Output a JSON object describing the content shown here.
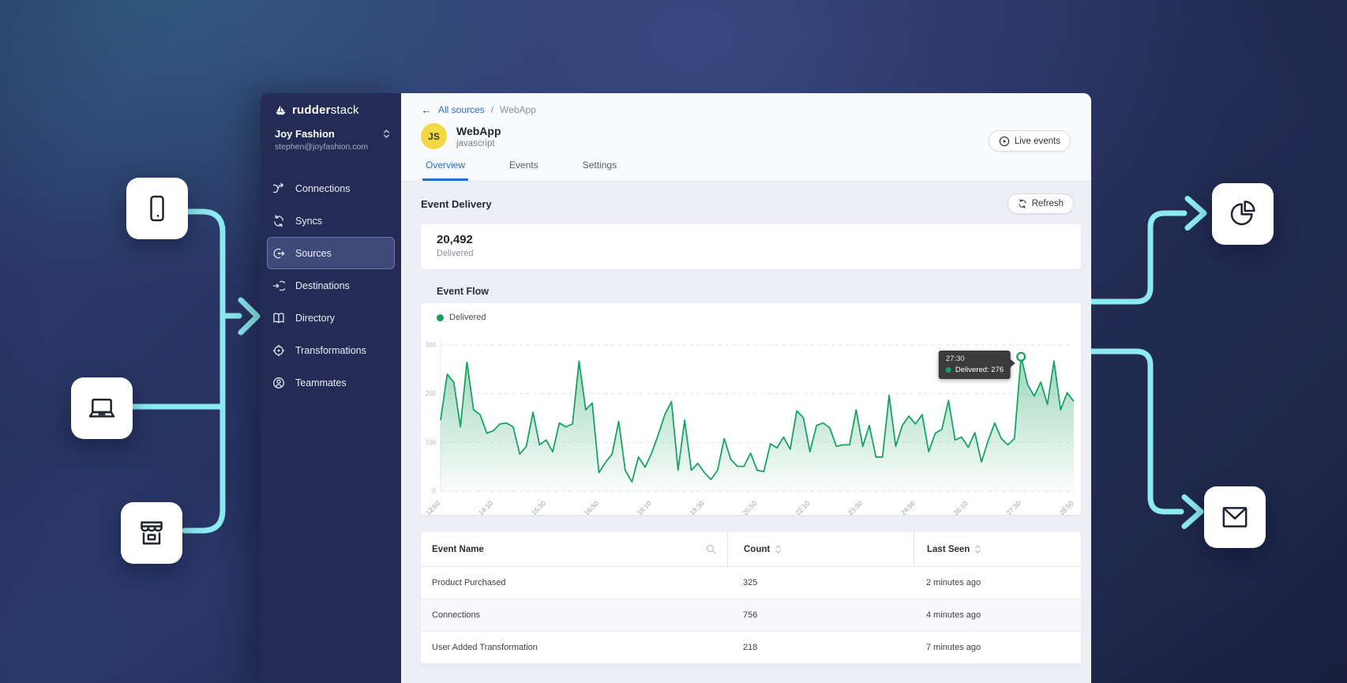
{
  "colors": {
    "accent_blue": "#2f6bd8",
    "green": "#17a05e",
    "cyan": "#8ceaf2",
    "sidebar_bg": "#242c55",
    "avatar_yellow": "#f2d844",
    "tooltip_bg": "#3b3b3b"
  },
  "brand": {
    "name_bold": "rudder",
    "name_light": "stack"
  },
  "workspace": {
    "name": "Joy Fashion",
    "email": "stephen@joyfashion.com"
  },
  "sidebar": {
    "items": [
      {
        "label": "Connections",
        "icon": "connections-icon",
        "active": false
      },
      {
        "label": "Syncs",
        "icon": "syncs-icon",
        "active": false
      },
      {
        "label": "Sources",
        "icon": "sources-icon",
        "active": true
      },
      {
        "label": "Destinations",
        "icon": "destinations-icon",
        "active": false
      },
      {
        "label": "Directory",
        "icon": "directory-icon",
        "active": false
      },
      {
        "label": "Transformations",
        "icon": "transformations-icon",
        "active": false
      },
      {
        "label": "Teammates",
        "icon": "teammates-icon",
        "active": false
      }
    ]
  },
  "breadcrumb": {
    "back_icon": "←",
    "link": "All sources",
    "separator": "/",
    "current": "WebApp"
  },
  "source_header": {
    "avatar_initials": "JS",
    "name": "WebApp",
    "type": "javascript",
    "live_events_label": "Live events"
  },
  "tabs": [
    {
      "label": "Overview",
      "active": true
    },
    {
      "label": "Events",
      "active": false
    },
    {
      "label": "Settings",
      "active": false
    }
  ],
  "event_delivery": {
    "section_title": "Event Delivery",
    "refresh_label": "Refresh",
    "stat_value": "20,492",
    "stat_label": "Delivered"
  },
  "chart_data": {
    "type": "area",
    "title": "Event Flow",
    "legend_position": "top-left",
    "grid": "horizontal-dashed",
    "ylim": [
      0,
      300
    ],
    "yticks": [
      0,
      100,
      200,
      300
    ],
    "x_labels": [
      "12:50",
      "14:10",
      "15:30",
      "16:50",
      "18:10",
      "19:30",
      "20:50",
      "22:10",
      "23:30",
      "24:50",
      "26:10",
      "27:30",
      "28:50"
    ],
    "series": [
      {
        "name": "Delivered",
        "color": "#17a05e",
        "values": [
          146,
          240,
          224,
          132,
          265,
          167,
          157,
          119,
          124,
          138,
          140,
          132,
          76,
          92,
          162,
          95,
          105,
          81,
          140,
          132,
          138,
          267,
          167,
          181,
          38,
          59,
          76,
          143,
          43,
          19,
          70,
          49,
          78,
          116,
          157,
          184,
          43,
          146,
          43,
          57,
          38,
          24,
          43,
          108,
          65,
          51,
          51,
          78,
          43,
          40,
          97,
          89,
          111,
          86,
          165,
          151,
          81,
          135,
          140,
          130,
          92,
          95,
          95,
          167,
          92,
          135,
          70,
          70,
          197,
          92,
          135,
          154,
          138,
          157,
          81,
          119,
          127,
          186,
          105,
          111,
          90,
          120,
          60,
          103,
          140,
          108,
          95,
          108,
          276,
          219,
          195,
          224,
          178,
          267,
          167,
          202,
          184
        ]
      }
    ],
    "tooltip": {
      "index": 88,
      "x_label": "27:30",
      "series": "Delivered",
      "value": 276,
      "display": "Delivered: 276"
    }
  },
  "table": {
    "columns": [
      "Event Name",
      "Count",
      "Last Seen"
    ],
    "rows": [
      {
        "event_name": "Product Purchased",
        "count": "325",
        "last_seen": "2 minutes ago"
      },
      {
        "event_name": "Connections",
        "count": "756",
        "last_seen": "4 minutes ago"
      },
      {
        "event_name": "User Added Transformation",
        "count": "218",
        "last_seen": "7 minutes ago"
      }
    ]
  }
}
